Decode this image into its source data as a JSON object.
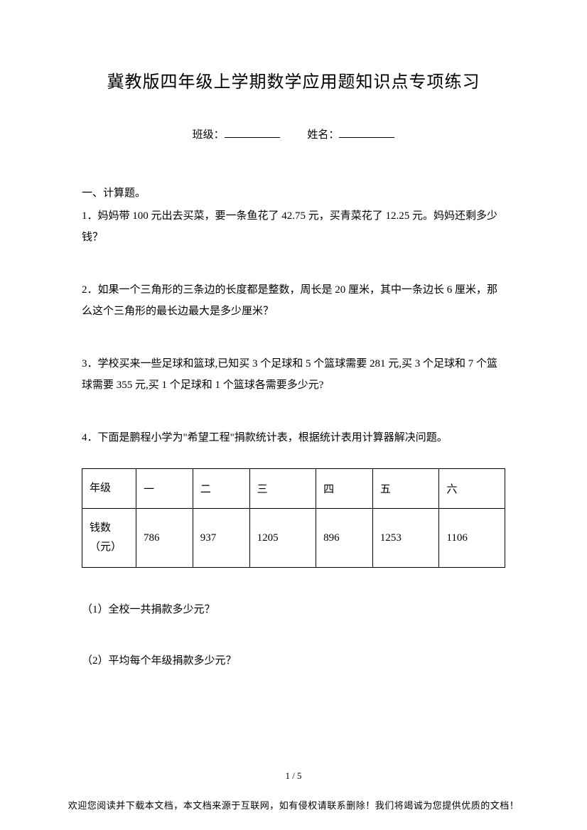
{
  "title": "冀教版四年级上学期数学应用题知识点专项练习",
  "info": {
    "class_label": "班级：",
    "name_label": "姓名："
  },
  "section_heading": "一、计算题。",
  "questions": {
    "q1": "1．妈妈带 100 元出去买菜，要一条鱼花了 42.75 元，买青菜花了 12.25 元。妈妈还剩多少钱？",
    "q2": "2．如果一个三角形的三条边的长度都是整数，周长是 20 厘米，其中一条边长 6 厘米，那么这个三角形的最长边最大是多少厘米？",
    "q3": "3．学校买来一些足球和篮球,已知买 3 个足球和 5 个篮球需要 281 元,买 3 个足球和 7 个篮球需要 355 元,买 1 个足球和 1 个篮球各需要多少元?",
    "q4": "4．下面是鹏程小学为\"希望工程\"捐款统计表，根据统计表用计算器解决问题。"
  },
  "table": {
    "row1_header": "年级",
    "row2_header": "钱数（元）",
    "columns": [
      "一",
      "二",
      "三",
      "四",
      "五",
      "六"
    ],
    "values": [
      "786",
      "937",
      "1205",
      "896",
      "1253",
      "1106"
    ]
  },
  "sub_questions": {
    "sq1": "（1）全校一共捐款多少元？",
    "sq2": "（2）平均每个年级捐款多少元？"
  },
  "page_number": "1 / 5",
  "footer": "欢迎您阅读并下载本文档，本文档来源于互联网，如有侵权请联系删除！我们将竭诚为您提供优质的文档！"
}
